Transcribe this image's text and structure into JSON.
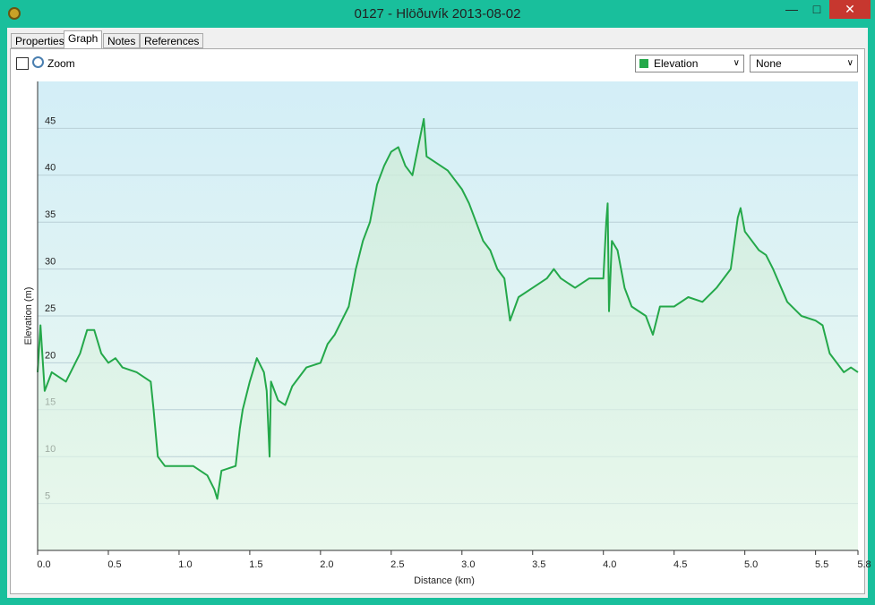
{
  "window": {
    "title": "0127 - Hlöðuvík 2013-08-02"
  },
  "tabs": [
    "Properties",
    "Graph",
    "Notes",
    "References"
  ],
  "toolbar": {
    "zoom": "Zoom",
    "secondary_dropdown": "None"
  },
  "chart_data": {
    "type": "line",
    "xlabel": "Distance  (km)",
    "ylabel": "Elevation (m)",
    "x": [
      0.0,
      0.02,
      0.05,
      0.1,
      0.2,
      0.3,
      0.35,
      0.4,
      0.45,
      0.5,
      0.55,
      0.6,
      0.7,
      0.8,
      0.82,
      0.85,
      0.9,
      1.0,
      1.1,
      1.2,
      1.25,
      1.27,
      1.3,
      1.4,
      1.43,
      1.45,
      1.5,
      1.55,
      1.6,
      1.62,
      1.64,
      1.65,
      1.7,
      1.75,
      1.8,
      1.9,
      2.0,
      2.05,
      2.1,
      2.15,
      2.2,
      2.25,
      2.3,
      2.35,
      2.4,
      2.45,
      2.5,
      2.55,
      2.6,
      2.65,
      2.73,
      2.75,
      2.8,
      2.9,
      3.0,
      3.05,
      3.1,
      3.15,
      3.2,
      3.25,
      3.3,
      3.34,
      3.4,
      3.5,
      3.6,
      3.65,
      3.7,
      3.8,
      3.9,
      4.0,
      4.02,
      4.03,
      4.04,
      4.06,
      4.1,
      4.15,
      4.2,
      4.3,
      4.35,
      4.4,
      4.5,
      4.6,
      4.7,
      4.8,
      4.9,
      4.95,
      4.97,
      5.0,
      5.05,
      5.1,
      5.15,
      5.2,
      5.3,
      5.4,
      5.5,
      5.55,
      5.6,
      5.65,
      5.7,
      5.75,
      5.8
    ],
    "series": [
      {
        "name": "Elevation",
        "color": "#24a84a",
        "values": [
          19,
          24,
          17,
          19,
          18,
          21,
          23.5,
          23.5,
          21,
          20,
          20.5,
          19.5,
          19,
          18,
          15,
          10,
          9,
          9,
          9,
          8,
          6.5,
          5.5,
          8.5,
          9,
          13,
          15,
          18,
          20.5,
          19,
          17,
          10,
          18,
          16,
          15.5,
          17.5,
          19.5,
          20,
          22,
          23,
          24.5,
          26,
          30,
          33,
          35,
          39,
          41,
          42.5,
          43,
          41,
          40,
          46,
          42,
          41.5,
          40.5,
          38.5,
          37,
          35,
          33,
          32,
          30,
          29,
          24.5,
          27,
          28,
          29,
          30,
          29,
          28,
          29,
          29,
          35,
          37,
          25.5,
          33,
          32,
          28,
          26,
          25,
          23,
          26,
          26,
          27,
          26.5,
          28,
          30,
          35.5,
          36.5,
          34,
          33,
          32,
          31.5,
          30,
          26.5,
          25,
          24.5,
          24,
          21,
          20,
          19,
          19.5,
          19
        ]
      }
    ],
    "xlim": [
      0,
      5.8
    ],
    "ylim": [
      0,
      50
    ],
    "xticks": [
      {
        "value": 0,
        "label": "0.0"
      },
      0.5,
      {
        "value": 1,
        "label": "1.0"
      },
      1.5,
      {
        "value": 2,
        "label": "2.0"
      },
      2.5,
      {
        "value": 3,
        "label": "3.0"
      },
      3.5,
      {
        "value": 4,
        "label": "4.0"
      },
      4.5,
      {
        "value": 5,
        "label": "5.0"
      },
      5.5,
      5.8
    ],
    "yticks": [
      5,
      10,
      15,
      20,
      25,
      30,
      35,
      40,
      45
    ],
    "grid": true
  }
}
